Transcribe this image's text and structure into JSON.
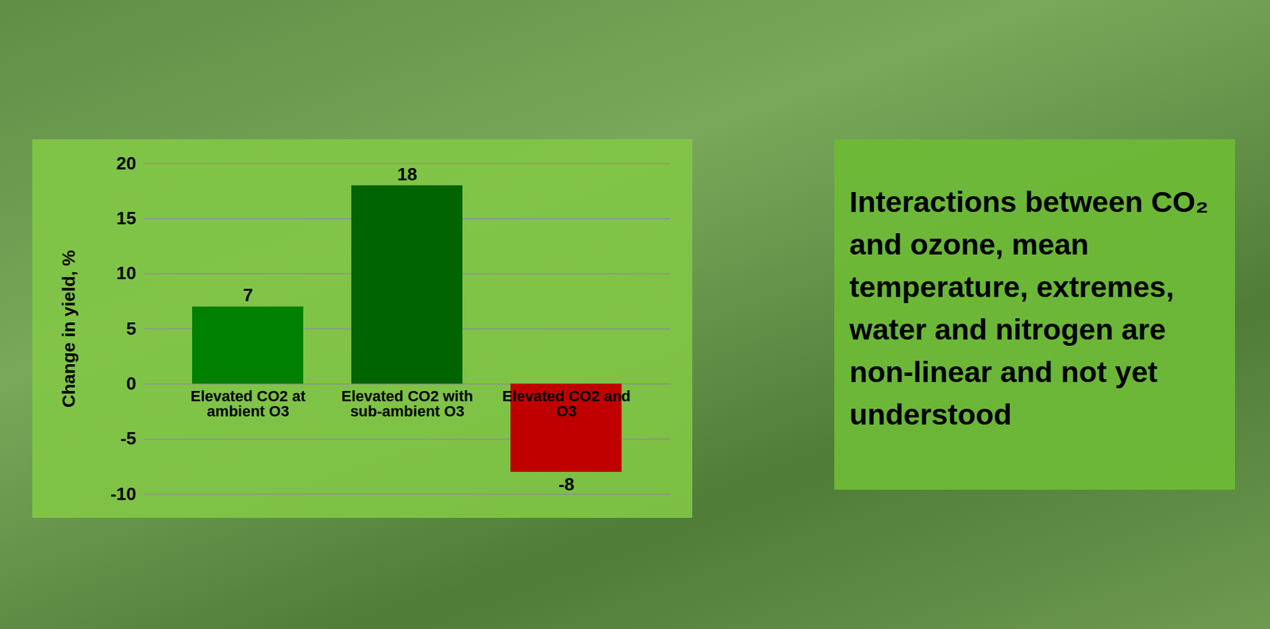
{
  "chart_data": {
    "type": "bar",
    "categories": [
      "Elevated CO2 at ambient O3",
      "Elevated CO2 with sub-ambient O3",
      "Elevated CO2 and O3"
    ],
    "values": [
      7,
      18,
      -8
    ],
    "colors": [
      "#008000",
      "#006400",
      "#c00000"
    ],
    "ylabel": "Change in yield, %",
    "ylim": [
      -10,
      20
    ],
    "yticks": [
      -10,
      -5,
      0,
      5,
      10,
      15,
      20
    ],
    "grid": true,
    "data_labels": true,
    "annotations": [
      "Interactions between CO₂ and ozone, mean temperature, extremes, water and nitrogen are non-linear and not yet understood"
    ]
  }
}
